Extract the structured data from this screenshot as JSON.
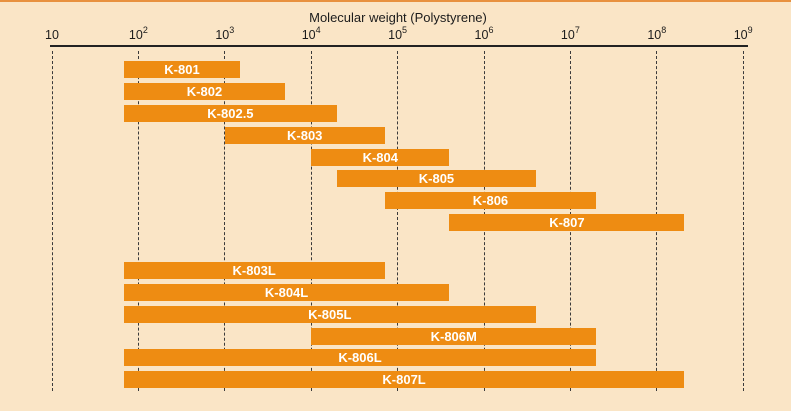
{
  "page": {
    "background_color": "#FAE5C6",
    "top_border_color": "#E8913F",
    "bottom_strip_color": "#FFFFFF"
  },
  "chart_data": {
    "type": "bar",
    "subtype": "horizontal-range-bars-log-axis",
    "title": "Molecular weight (Polystyrene)",
    "bar_color": "#EE8C12",
    "bar_label_color": "#FFFFFF",
    "grid": "dashed-vertical-per-decade",
    "legend_position": "none",
    "axis": {
      "scale": "log10",
      "position": "top",
      "min": 10,
      "max": 1000000000,
      "tick_values": [
        10,
        100,
        1000,
        10000,
        100000,
        1000000,
        10000000,
        100000000,
        1000000000
      ],
      "tick_labels": [
        {
          "base": "10",
          "sup": ""
        },
        {
          "base": "10",
          "sup": "2"
        },
        {
          "base": "10",
          "sup": "3"
        },
        {
          "base": "10",
          "sup": "4"
        },
        {
          "base": "10",
          "sup": "5"
        },
        {
          "base": "10",
          "sup": "6"
        },
        {
          "base": "10",
          "sup": "7"
        },
        {
          "base": "10",
          "sup": "8"
        },
        {
          "base": "10",
          "sup": "9"
        }
      ]
    },
    "series": [
      {
        "name": "K-801",
        "group": 1,
        "range": [
          70,
          1500
        ],
        "log_range": [
          1.83,
          3.18
        ]
      },
      {
        "name": "K-802",
        "group": 1,
        "range": [
          70,
          5000
        ],
        "log_range": [
          1.83,
          3.7
        ]
      },
      {
        "name": "K-802.5",
        "group": 1,
        "range": [
          70,
          20000
        ],
        "log_range": [
          1.83,
          4.3
        ]
      },
      {
        "name": "K-803",
        "group": 1,
        "range": [
          1000,
          70000
        ],
        "log_range": [
          3.0,
          4.85
        ]
      },
      {
        "name": "K-804",
        "group": 1,
        "range": [
          10000,
          400000
        ],
        "log_range": [
          4.0,
          5.6
        ]
      },
      {
        "name": "K-805",
        "group": 1,
        "range": [
          20000,
          4000000
        ],
        "log_range": [
          4.3,
          6.6
        ]
      },
      {
        "name": "K-806",
        "group": 1,
        "range": [
          70000,
          20000000
        ],
        "log_range": [
          4.85,
          7.3
        ]
      },
      {
        "name": "K-807",
        "group": 1,
        "range": [
          400000,
          200000000
        ],
        "log_range": [
          5.6,
          8.32
        ]
      },
      {
        "name": "K-803L",
        "group": 2,
        "range": [
          70,
          70000
        ],
        "log_range": [
          1.83,
          4.85
        ]
      },
      {
        "name": "K-804L",
        "group": 2,
        "range": [
          70,
          400000
        ],
        "log_range": [
          1.83,
          5.6
        ]
      },
      {
        "name": "K-805L",
        "group": 2,
        "range": [
          70,
          4000000
        ],
        "log_range": [
          1.83,
          6.6
        ]
      },
      {
        "name": "K-806M",
        "group": 2,
        "range": [
          10000,
          20000000
        ],
        "log_range": [
          4.0,
          7.3
        ]
      },
      {
        "name": "K-806L",
        "group": 2,
        "range": [
          70,
          20000000
        ],
        "log_range": [
          1.83,
          7.3
        ]
      },
      {
        "name": "K-807L",
        "group": 2,
        "range": [
          70,
          200000000
        ],
        "log_range": [
          1.83,
          8.32
        ]
      }
    ]
  }
}
